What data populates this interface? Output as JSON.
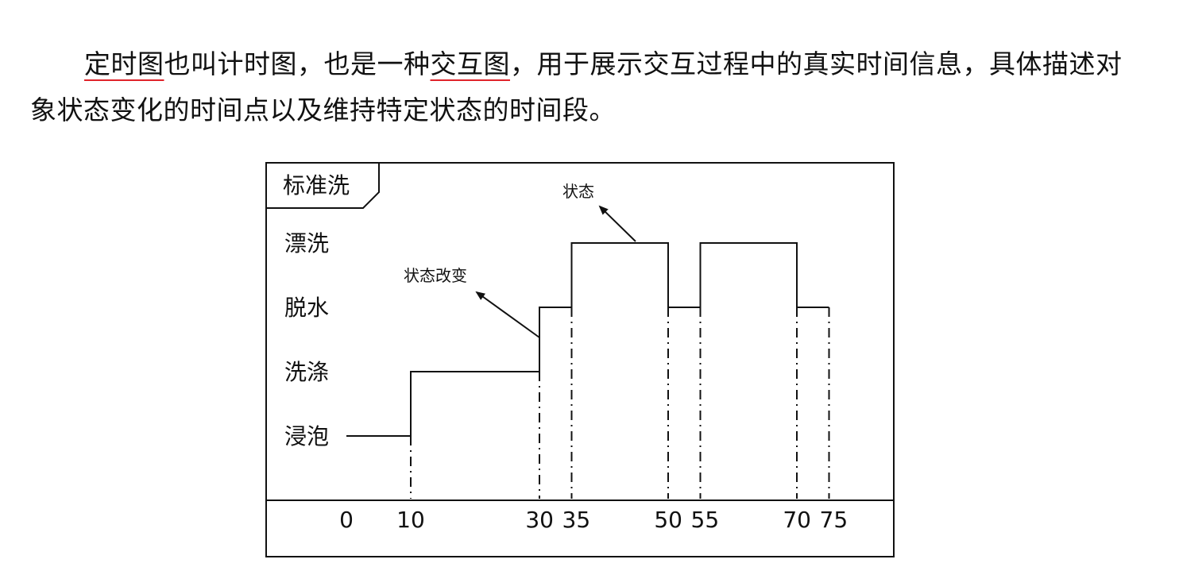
{
  "paragraph": {
    "intro": "",
    "term1": "定时图",
    "mid1": "也叫计时图，也是一种",
    "term2": "交互图",
    "rest": "，用于展示交互过程中的真实时间信息，具体描述对象状态变化的时间点以及维持特定状态的时间段。"
  },
  "diagram": {
    "frame_label": "标准洗",
    "states": [
      {
        "key": "rinse",
        "label": "漂洗",
        "level": 3
      },
      {
        "key": "spin",
        "label": "脱水",
        "level": 2
      },
      {
        "key": "wash",
        "label": "洗涤",
        "level": 1
      },
      {
        "key": "soak",
        "label": "浸泡",
        "level": 0
      }
    ],
    "time_ticks": [
      0,
      10,
      30,
      35,
      50,
      55,
      70,
      75
    ],
    "tick_labels": [
      "0",
      "10",
      "30",
      "35",
      "50",
      "55",
      "70",
      "75"
    ],
    "timeline": [
      {
        "t0": 0,
        "t1": 10,
        "level": 0
      },
      {
        "t0": 10,
        "t1": 30,
        "level": 1
      },
      {
        "t0": 30,
        "t1": 35,
        "level": 2
      },
      {
        "t0": 35,
        "t1": 50,
        "level": 3
      },
      {
        "t0": 50,
        "t1": 55,
        "level": 2
      },
      {
        "t0": 55,
        "t1": 70,
        "level": 3
      },
      {
        "t0": 70,
        "t1": 75,
        "level": 2
      }
    ],
    "annotation_state": "状态",
    "annotation_change": "状态改变"
  }
}
